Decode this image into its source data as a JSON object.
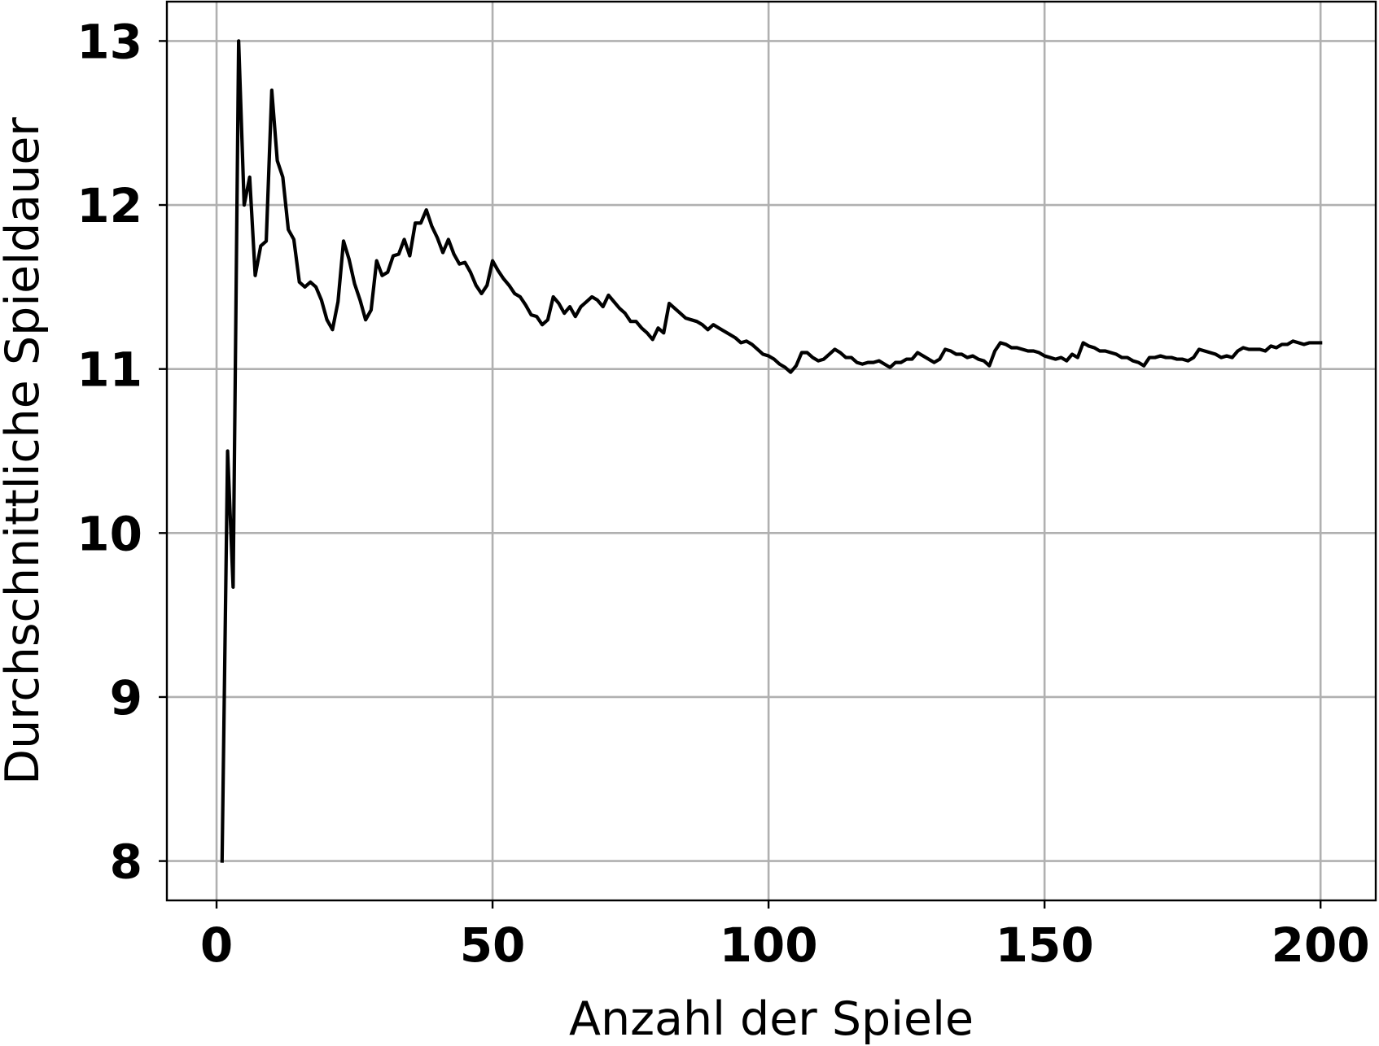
{
  "chart_data": {
    "type": "line",
    "title": "",
    "xlabel": "Anzahl der Spiele",
    "ylabel": "Durchschnittliche Spieldauer",
    "xlim": [
      -9,
      210
    ],
    "ylim": [
      7.76,
      13.24
    ],
    "xticks": [
      0,
      50,
      100,
      150,
      200
    ],
    "xtick_labels": [
      "0",
      "50",
      "100",
      "150",
      "200"
    ],
    "yticks": [
      8,
      9,
      10,
      11,
      12,
      13
    ],
    "ytick_labels": [
      "8",
      "9",
      "10",
      "11",
      "12",
      "13"
    ],
    "grid": true,
    "legend": "none",
    "colors": {
      "line": "#000000",
      "grid": "#b0b0b0",
      "background": "#ffffff"
    },
    "series": [
      {
        "x": [
          1,
          2,
          3,
          4,
          5,
          6,
          7,
          8,
          9,
          10,
          11,
          12,
          13,
          14,
          15,
          16,
          17,
          18,
          19,
          20,
          21,
          22,
          23,
          24,
          25,
          26,
          27,
          28,
          29,
          30,
          31,
          32,
          33,
          34,
          35,
          36,
          37,
          38,
          39,
          40,
          41,
          42,
          43,
          44,
          45,
          46,
          47,
          48,
          49,
          50,
          51,
          52,
          53,
          54,
          55,
          56,
          57,
          58,
          59,
          60,
          61,
          62,
          63,
          64,
          65,
          66,
          67,
          68,
          69,
          70,
          71,
          72,
          73,
          74,
          75,
          76,
          77,
          78,
          79,
          80,
          81,
          82,
          83,
          84,
          85,
          86,
          87,
          88,
          89,
          90,
          91,
          92,
          93,
          94,
          95,
          96,
          97,
          98,
          99,
          100,
          101,
          102,
          103,
          104,
          105,
          106,
          107,
          108,
          109,
          110,
          111,
          112,
          113,
          114,
          115,
          116,
          117,
          118,
          119,
          120,
          121,
          122,
          123,
          124,
          125,
          126,
          127,
          128,
          129,
          130,
          131,
          132,
          133,
          134,
          135,
          136,
          137,
          138,
          139,
          140,
          141,
          142,
          143,
          144,
          145,
          146,
          147,
          148,
          149,
          150,
          151,
          152,
          153,
          154,
          155,
          156,
          157,
          158,
          159,
          160,
          161,
          162,
          163,
          164,
          165,
          166,
          167,
          168,
          169,
          170,
          171,
          172,
          173,
          174,
          175,
          176,
          177,
          178,
          179,
          180,
          181,
          182,
          183,
          184,
          185,
          186,
          187,
          188,
          189,
          190,
          191,
          192,
          193,
          194,
          195,
          196,
          197,
          198,
          199,
          200
        ],
        "y": [
          8.0,
          10.5,
          9.67,
          13.0,
          12.0,
          12.17,
          11.57,
          11.75,
          11.78,
          12.7,
          12.27,
          12.17,
          11.85,
          11.79,
          11.53,
          11.5,
          11.53,
          11.5,
          11.42,
          11.3,
          11.24,
          11.41,
          11.78,
          11.67,
          11.52,
          11.42,
          11.3,
          11.36,
          11.66,
          11.57,
          11.59,
          11.69,
          11.7,
          11.79,
          11.69,
          11.89,
          11.89,
          11.97,
          11.87,
          11.8,
          11.71,
          11.79,
          11.7,
          11.64,
          11.65,
          11.59,
          11.51,
          11.46,
          11.51,
          11.66,
          11.6,
          11.55,
          11.51,
          11.46,
          11.44,
          11.39,
          11.33,
          11.32,
          11.27,
          11.3,
          11.44,
          11.4,
          11.34,
          11.38,
          11.32,
          11.38,
          11.41,
          11.44,
          11.42,
          11.38,
          11.45,
          11.41,
          11.37,
          11.34,
          11.29,
          11.29,
          11.25,
          11.22,
          11.18,
          11.25,
          11.22,
          11.4,
          11.37,
          11.34,
          11.31,
          11.3,
          11.29,
          11.27,
          11.24,
          11.27,
          11.25,
          11.23,
          11.21,
          11.19,
          11.16,
          11.17,
          11.15,
          11.12,
          11.09,
          11.08,
          11.06,
          11.03,
          11.01,
          10.98,
          11.02,
          11.1,
          11.1,
          11.07,
          11.05,
          11.06,
          11.09,
          11.12,
          11.1,
          11.07,
          11.07,
          11.04,
          11.03,
          11.04,
          11.04,
          11.05,
          11.03,
          11.01,
          11.04,
          11.04,
          11.06,
          11.06,
          11.1,
          11.08,
          11.06,
          11.04,
          11.06,
          11.12,
          11.11,
          11.09,
          11.09,
          11.07,
          11.08,
          11.06,
          11.05,
          11.02,
          11.11,
          11.16,
          11.15,
          11.13,
          11.13,
          11.12,
          11.11,
          11.11,
          11.1,
          11.08,
          11.07,
          11.06,
          11.07,
          11.05,
          11.09,
          11.07,
          11.16,
          11.14,
          11.13,
          11.11,
          11.11,
          11.1,
          11.09,
          11.07,
          11.07,
          11.05,
          11.04,
          11.02,
          11.07,
          11.07,
          11.08,
          11.07,
          11.07,
          11.06,
          11.06,
          11.05,
          11.07,
          11.12,
          11.11,
          11.1,
          11.09,
          11.07,
          11.08,
          11.07,
          11.11,
          11.13,
          11.12,
          11.12,
          11.12,
          11.11,
          11.14,
          11.13,
          11.15,
          11.15,
          11.17,
          11.16,
          11.15,
          11.16,
          11.16,
          11.16
        ]
      }
    ]
  }
}
